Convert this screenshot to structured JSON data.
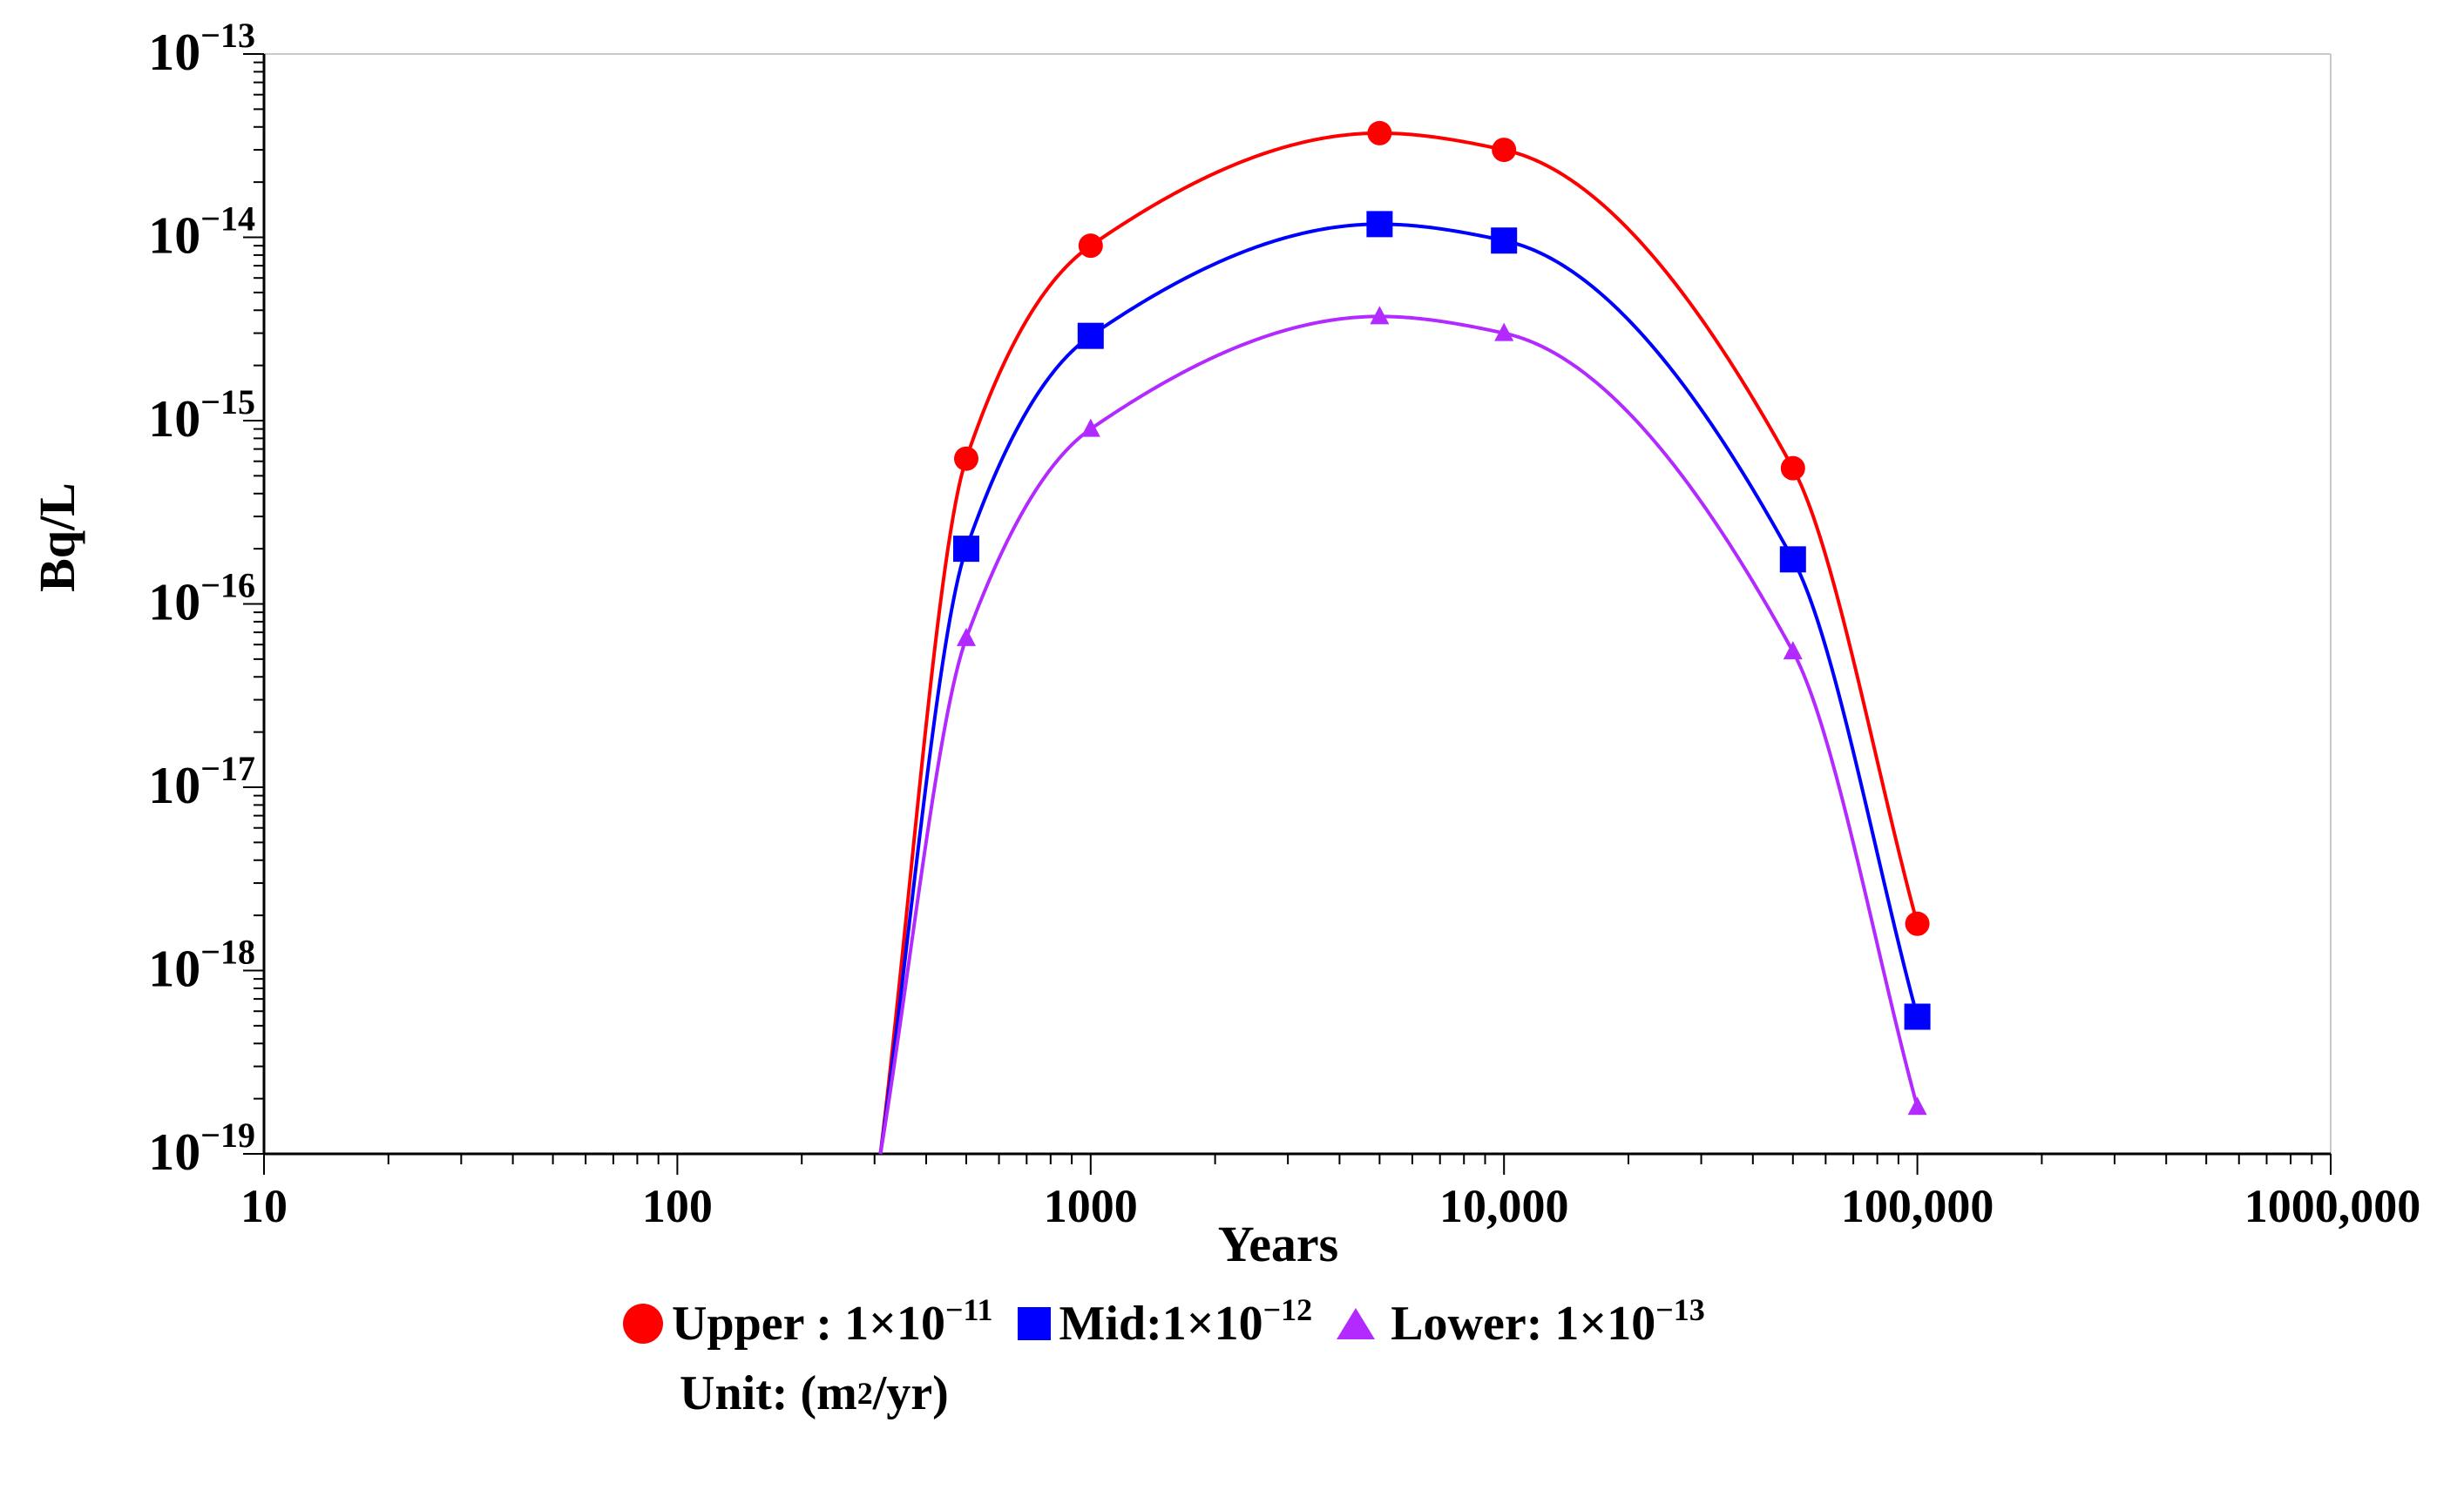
{
  "chart_data": {
    "type": "line",
    "xlabel": "Years",
    "ylabel": "Bq/L",
    "xscale": "log",
    "yscale": "log",
    "xlim": [
      10,
      1000000
    ],
    "ylim": [
      1e-19,
      1e-13
    ],
    "x_tick_values": [
      10,
      100,
      1000,
      10000,
      100000,
      1000000
    ],
    "x_tick_labels": [
      "10",
      "100",
      "1000",
      "10,000",
      "100,000",
      "1000,000"
    ],
    "y_tick_values": [
      1e-19,
      1e-18,
      1e-17,
      1e-16,
      1e-15,
      1e-14,
      1e-13
    ],
    "y_tick_labels": [
      {
        "base": "10",
        "exp": "−19"
      },
      {
        "base": "10",
        "exp": "−18"
      },
      {
        "base": "10",
        "exp": "−17"
      },
      {
        "base": "10",
        "exp": "−16"
      },
      {
        "base": "10",
        "exp": "−15"
      },
      {
        "base": "10",
        "exp": "−14"
      },
      {
        "base": "10",
        "exp": "−13"
      }
    ],
    "grid": false,
    "legend_position": "bottom",
    "series": [
      {
        "name": "Upper",
        "color": "#ff0000",
        "marker": "circle",
        "label": "Upper :",
        "value_base": "1×10",
        "value_exp": "−11",
        "x": [
          310,
          500,
          1000,
          5000,
          10000,
          50000,
          100000
        ],
        "y": [
          1e-19,
          6.2e-16,
          9e-15,
          3.7e-14,
          3e-14,
          5.5e-16,
          1.8e-18
        ]
      },
      {
        "name": "Mid",
        "color": "#0000ff",
        "marker": "square",
        "label": "Mid:",
        "value_base": "1×10",
        "value_exp": "−12",
        "x": [
          310,
          500,
          1000,
          5000,
          10000,
          50000,
          100000
        ],
        "y": [
          1e-19,
          2e-16,
          2.9e-15,
          1.18e-14,
          9.6e-15,
          1.75e-16,
          5.6e-19
        ]
      },
      {
        "name": "Lower",
        "color": "#b22aff",
        "marker": "triangle",
        "label": "Lower:",
        "value_base": "1×10",
        "value_exp": "−13",
        "x": [
          310,
          500,
          1000,
          5000,
          10000,
          50000,
          100000
        ],
        "y": [
          1e-19,
          6.5e-17,
          9e-16,
          3.7e-15,
          3e-15,
          5.5e-17,
          1.8e-19
        ]
      }
    ]
  },
  "legend": {
    "unit_prefix": "Unit: (m",
    "unit_exp": "2",
    "unit_suffix": "/yr)"
  }
}
